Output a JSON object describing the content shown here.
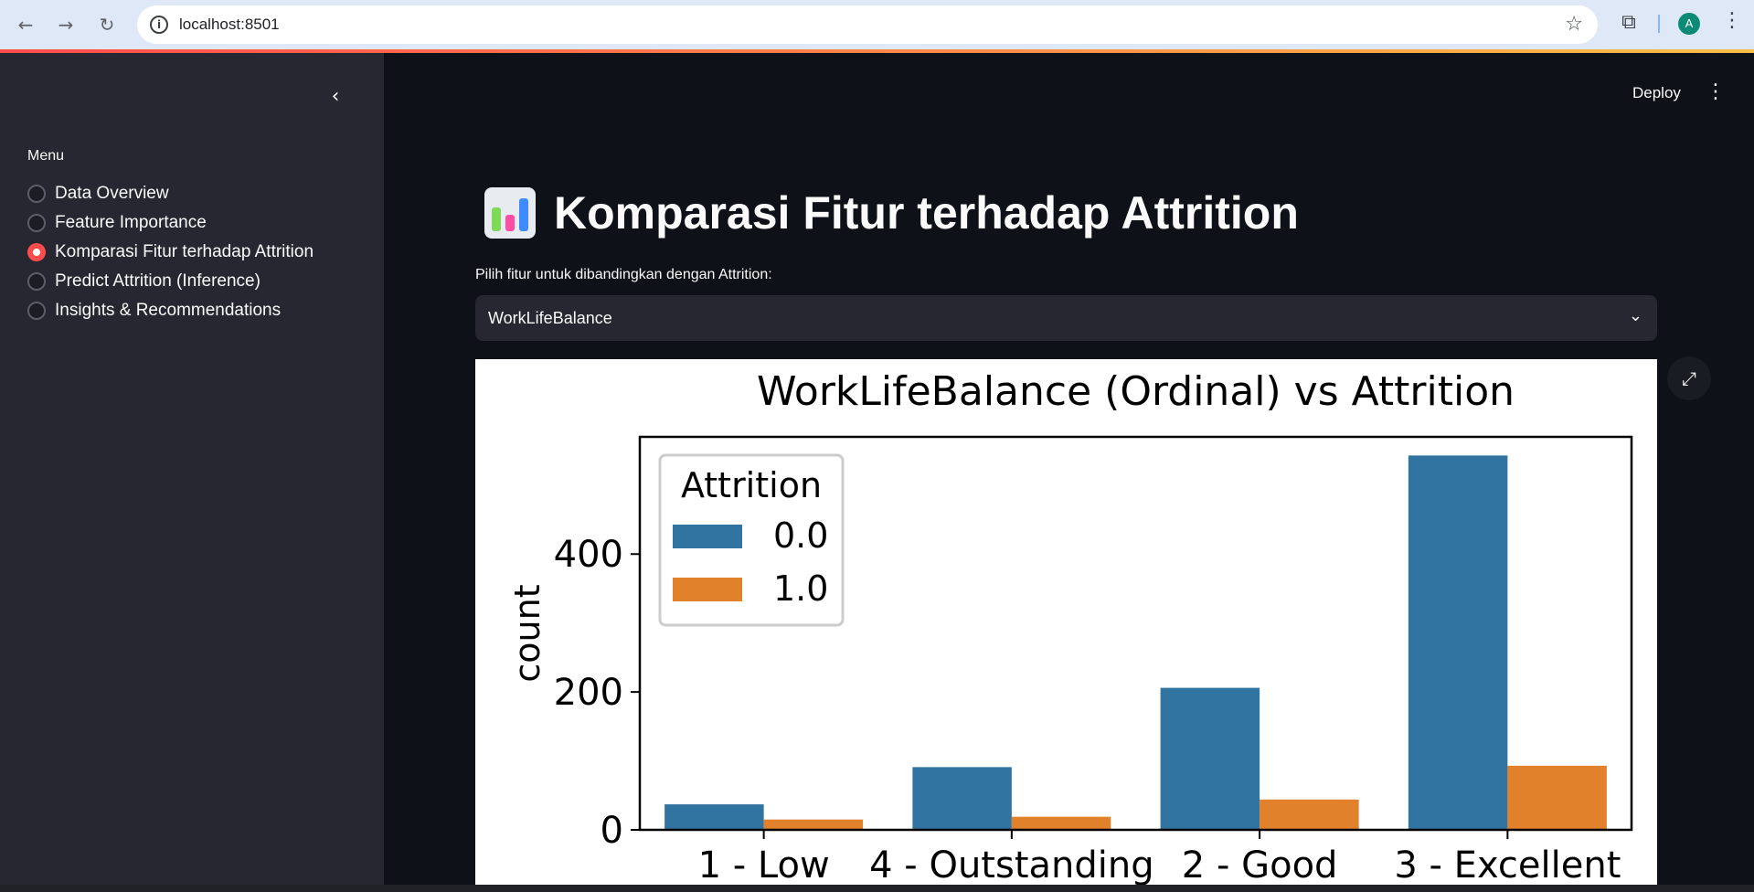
{
  "browser": {
    "url": "localhost:8501",
    "profile_initial": "A"
  },
  "sidebar": {
    "menu_label": "Menu",
    "items": [
      {
        "label": "Data Overview",
        "selected": false
      },
      {
        "label": "Feature Importance",
        "selected": false
      },
      {
        "label": "Komparasi Fitur terhadap Attrition",
        "selected": true
      },
      {
        "label": "Predict Attrition (Inference)",
        "selected": false
      },
      {
        "label": "Insights & Recommendations",
        "selected": false
      }
    ]
  },
  "header": {
    "deploy_label": "Deploy"
  },
  "main": {
    "title": "Komparasi Fitur terhadap Attrition",
    "title_icon": "bar-chart-icon",
    "select_label": "Pilih fitur untuk dibandingkan dengan Attrition:",
    "select_value": "WorkLifeBalance"
  },
  "colors": {
    "accent": "#ff4b4b",
    "series_0": "#3274a1",
    "series_1": "#e1812c"
  },
  "chart_data": {
    "type": "bar",
    "title": "WorkLifeBalance (Ordinal) vs Attrition",
    "xlabel": "",
    "ylabel": "count",
    "categories": [
      "1 - Low",
      "4 - Outstanding",
      "2 - Good",
      "3 - Excellent"
    ],
    "series": [
      {
        "name": "0.0",
        "values": [
          37,
          91,
          206,
          543
        ]
      },
      {
        "name": "1.0",
        "values": [
          15,
          19,
          44,
          93
        ]
      }
    ],
    "yticks": [
      0,
      200,
      400
    ],
    "ylim": [
      0,
      570
    ],
    "legend_title": "Attrition",
    "legend_position": "top-left",
    "grid": false
  }
}
